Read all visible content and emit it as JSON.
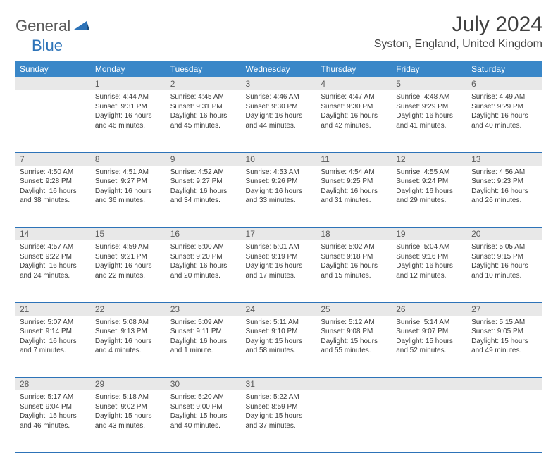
{
  "brand": {
    "part1": "General",
    "part2": "Blue"
  },
  "title": "July 2024",
  "location": "Syston, England, United Kingdom",
  "weekdays": [
    "Sunday",
    "Monday",
    "Tuesday",
    "Wednesday",
    "Thursday",
    "Friday",
    "Saturday"
  ],
  "colors": {
    "header_bg": "#3a87c8",
    "header_border": "#2d73b8",
    "daynum_bg": "#e8e8e8",
    "text": "#3a3a3a",
    "title_text": "#404040",
    "logo_gray": "#5a5a5a",
    "logo_blue": "#2d73b8"
  },
  "weeks": [
    {
      "nums": [
        "",
        "1",
        "2",
        "3",
        "4",
        "5",
        "6"
      ],
      "cells": [
        {},
        {
          "sunrise": "4:44 AM",
          "sunset": "9:31 PM",
          "daylight": "16 hours and 46 minutes."
        },
        {
          "sunrise": "4:45 AM",
          "sunset": "9:31 PM",
          "daylight": "16 hours and 45 minutes."
        },
        {
          "sunrise": "4:46 AM",
          "sunset": "9:30 PM",
          "daylight": "16 hours and 44 minutes."
        },
        {
          "sunrise": "4:47 AM",
          "sunset": "9:30 PM",
          "daylight": "16 hours and 42 minutes."
        },
        {
          "sunrise": "4:48 AM",
          "sunset": "9:29 PM",
          "daylight": "16 hours and 41 minutes."
        },
        {
          "sunrise": "4:49 AM",
          "sunset": "9:29 PM",
          "daylight": "16 hours and 40 minutes."
        }
      ]
    },
    {
      "nums": [
        "7",
        "8",
        "9",
        "10",
        "11",
        "12",
        "13"
      ],
      "cells": [
        {
          "sunrise": "4:50 AM",
          "sunset": "9:28 PM",
          "daylight": "16 hours and 38 minutes."
        },
        {
          "sunrise": "4:51 AM",
          "sunset": "9:27 PM",
          "daylight": "16 hours and 36 minutes."
        },
        {
          "sunrise": "4:52 AM",
          "sunset": "9:27 PM",
          "daylight": "16 hours and 34 minutes."
        },
        {
          "sunrise": "4:53 AM",
          "sunset": "9:26 PM",
          "daylight": "16 hours and 33 minutes."
        },
        {
          "sunrise": "4:54 AM",
          "sunset": "9:25 PM",
          "daylight": "16 hours and 31 minutes."
        },
        {
          "sunrise": "4:55 AM",
          "sunset": "9:24 PM",
          "daylight": "16 hours and 29 minutes."
        },
        {
          "sunrise": "4:56 AM",
          "sunset": "9:23 PM",
          "daylight": "16 hours and 26 minutes."
        }
      ]
    },
    {
      "nums": [
        "14",
        "15",
        "16",
        "17",
        "18",
        "19",
        "20"
      ],
      "cells": [
        {
          "sunrise": "4:57 AM",
          "sunset": "9:22 PM",
          "daylight": "16 hours and 24 minutes."
        },
        {
          "sunrise": "4:59 AM",
          "sunset": "9:21 PM",
          "daylight": "16 hours and 22 minutes."
        },
        {
          "sunrise": "5:00 AM",
          "sunset": "9:20 PM",
          "daylight": "16 hours and 20 minutes."
        },
        {
          "sunrise": "5:01 AM",
          "sunset": "9:19 PM",
          "daylight": "16 hours and 17 minutes."
        },
        {
          "sunrise": "5:02 AM",
          "sunset": "9:18 PM",
          "daylight": "16 hours and 15 minutes."
        },
        {
          "sunrise": "5:04 AM",
          "sunset": "9:16 PM",
          "daylight": "16 hours and 12 minutes."
        },
        {
          "sunrise": "5:05 AM",
          "sunset": "9:15 PM",
          "daylight": "16 hours and 10 minutes."
        }
      ]
    },
    {
      "nums": [
        "21",
        "22",
        "23",
        "24",
        "25",
        "26",
        "27"
      ],
      "cells": [
        {
          "sunrise": "5:07 AM",
          "sunset": "9:14 PM",
          "daylight": "16 hours and 7 minutes."
        },
        {
          "sunrise": "5:08 AM",
          "sunset": "9:13 PM",
          "daylight": "16 hours and 4 minutes."
        },
        {
          "sunrise": "5:09 AM",
          "sunset": "9:11 PM",
          "daylight": "16 hours and 1 minute."
        },
        {
          "sunrise": "5:11 AM",
          "sunset": "9:10 PM",
          "daylight": "15 hours and 58 minutes."
        },
        {
          "sunrise": "5:12 AM",
          "sunset": "9:08 PM",
          "daylight": "15 hours and 55 minutes."
        },
        {
          "sunrise": "5:14 AM",
          "sunset": "9:07 PM",
          "daylight": "15 hours and 52 minutes."
        },
        {
          "sunrise": "5:15 AM",
          "sunset": "9:05 PM",
          "daylight": "15 hours and 49 minutes."
        }
      ]
    },
    {
      "nums": [
        "28",
        "29",
        "30",
        "31",
        "",
        "",
        ""
      ],
      "cells": [
        {
          "sunrise": "5:17 AM",
          "sunset": "9:04 PM",
          "daylight": "15 hours and 46 minutes."
        },
        {
          "sunrise": "5:18 AM",
          "sunset": "9:02 PM",
          "daylight": "15 hours and 43 minutes."
        },
        {
          "sunrise": "5:20 AM",
          "sunset": "9:00 PM",
          "daylight": "15 hours and 40 minutes."
        },
        {
          "sunrise": "5:22 AM",
          "sunset": "8:59 PM",
          "daylight": "15 hours and 37 minutes."
        },
        {},
        {},
        {}
      ]
    }
  ],
  "labels": {
    "sunrise": "Sunrise:",
    "sunset": "Sunset:",
    "daylight": "Daylight:"
  }
}
